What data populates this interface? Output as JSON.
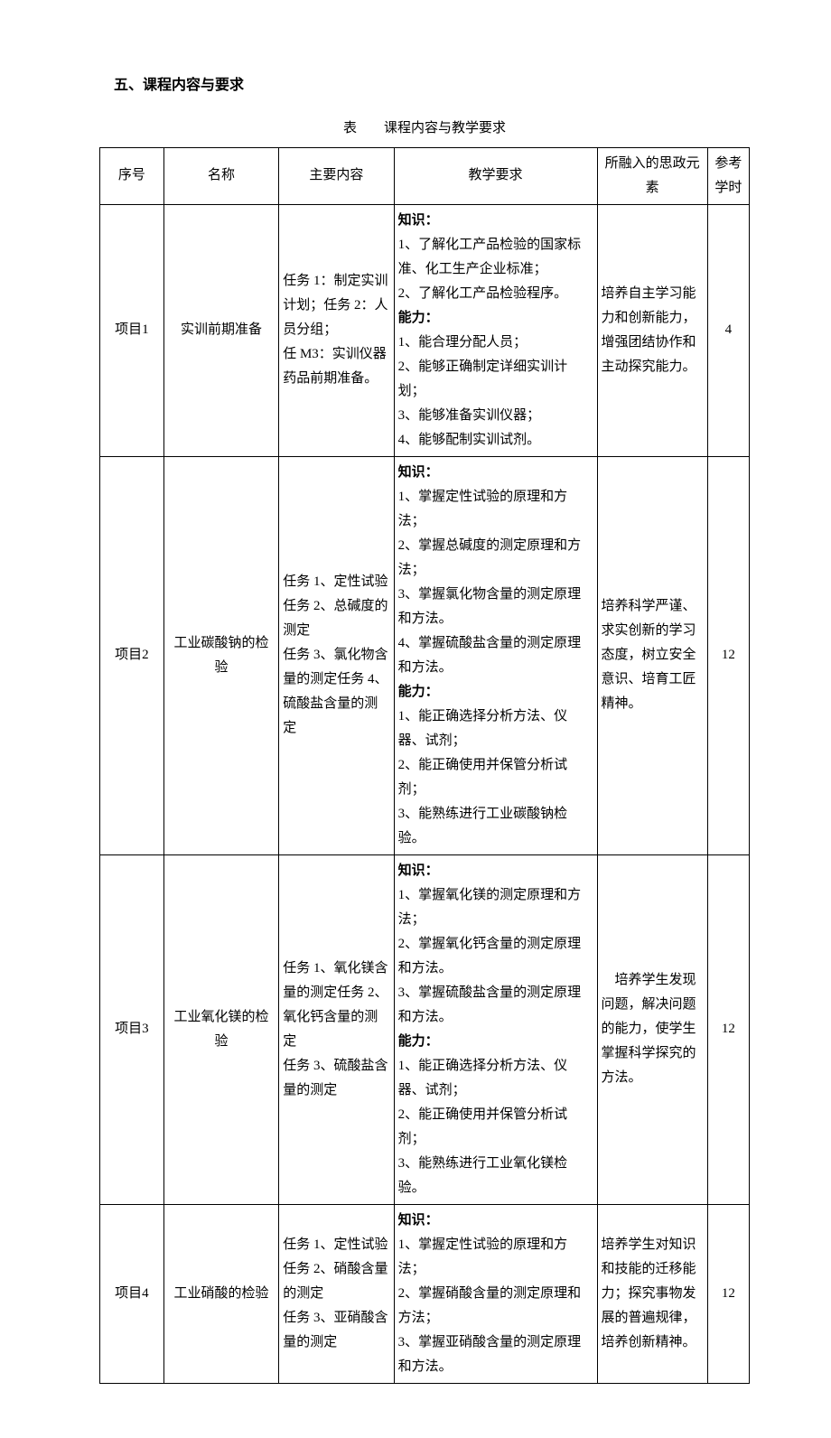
{
  "section_title": "五、课程内容与要求",
  "table_caption": "表　　课程内容与教学要求",
  "table": {
    "headers": {
      "index": "序号",
      "name": "名称",
      "main": "主要内容",
      "req": "教学要求",
      "ideo": "所融入的思政元素",
      "hours": "参考学时"
    },
    "rows": [
      {
        "index": "项目1",
        "name": "实训前期准备",
        "main": "任务 1：制定实训计划；任务 2：人员分组；\n任 M3：实训仪器药品前期准备。",
        "req_knowledge_label": "知识：",
        "req_knowledge": "1、了解化工产品检验的国家标准、化工生产企业标准；\n2、了解化工产品检验程序。",
        "req_ability_label": "能力：",
        "req_ability": "1、能合理分配人员；\n2、能够正确制定详细实训计划；\n3、能够准备实训仪器；\n4、能够配制实训试剂。",
        "ideo": "培养自主学习能力和创新能力，增强团结协作和主动探究能力。",
        "hours": "4"
      },
      {
        "index": "项目2",
        "name": "工业碳酸钠的检验",
        "main": "任务 1、定性试验\n任务 2、总碱度的测定\n任务 3、氯化物含量的测定任务 4、硫酸盐含量的测定",
        "req_knowledge_label": "知识：",
        "req_knowledge": "1、掌握定性试验的原理和方法；\n2、掌握总碱度的测定原理和方法；\n3、掌握氯化物含量的测定原理和方法。\n4、掌握硫酸盐含量的测定原理和方法。",
        "req_ability_label": "能力：",
        "req_ability": "1、能正确选择分析方法、仪器、试剂；\n2、能正确使用并保管分析试剂；\n3、能熟练进行工业碳酸钠检验。",
        "ideo": "培养科学严谨、求实创新的学习态度，树立安全意识、培育工匠精神。",
        "hours": "12"
      },
      {
        "index": "项目3",
        "name": "工业氧化镁的检验",
        "main": "任务 1、氧化镁含量的测定任务 2、氧化钙含量的测定\n任务 3、硫酸盐含量的测定",
        "req_knowledge_label": "知识：",
        "req_knowledge": "1、掌握氧化镁的测定原理和方法；\n2、掌握氧化钙含量的测定原理和方法。\n3、掌握硫酸盐含量的测定原理和方法。",
        "req_ability_label": "能力：",
        "req_ability": "1、能正确选择分析方法、仪器、试剂；\n2、能正确使用并保管分析试剂；\n3、能熟练进行工业氧化镁检验。",
        "ideo": "　培养学生发现问题，解决问题的能力，使学生掌握科学探究的方法。",
        "hours": "12"
      },
      {
        "index": "项目4",
        "name": "工业硝酸的检验",
        "main": "任务 1、定性试验\n任务 2、硝酸含量的测定\n任务 3、亚硝酸含量的测定",
        "req_knowledge_label": "知识：",
        "req_knowledge": "1、掌握定性试验的原理和方法；\n2、掌握硝酸含量的测定原理和方法；\n3、掌握亚硝酸含量的测定原理和方法。",
        "req_ability_label": "",
        "req_ability": "",
        "ideo": "培养学生对知识和技能的迁移能力；探究事物发展的普遍规律，培养创新精神。",
        "hours": "12"
      }
    ]
  }
}
